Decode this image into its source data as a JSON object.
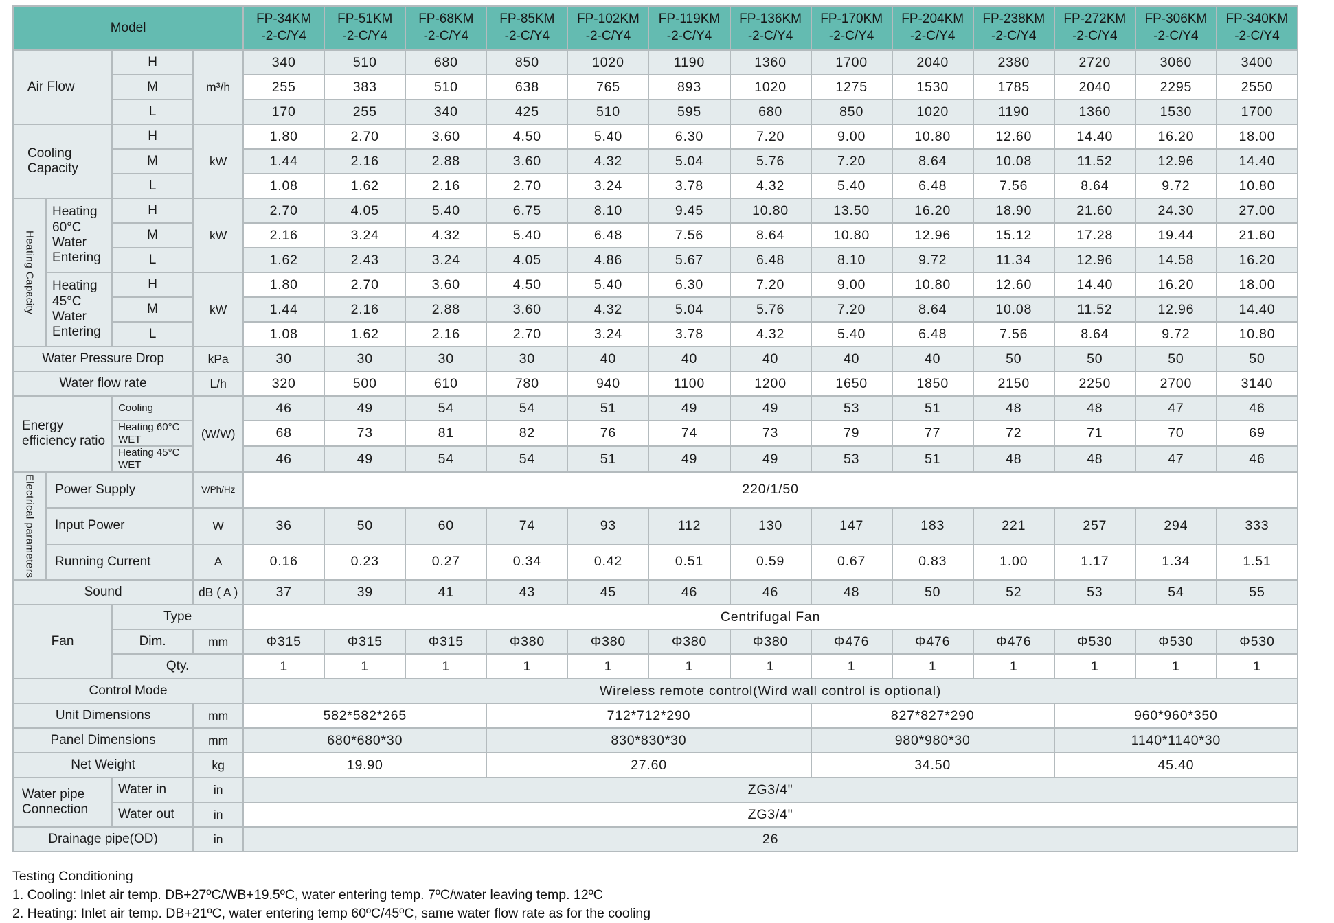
{
  "notes": {
    "lines": [
      "Testing Conditioning",
      "1. Cooling: Inlet air temp. DB+27ºC/WB+19.5ºC, water entering temp. 7ºC/water leaving temp. 12ºC",
      "2. Heating: Inlet air temp. DB+21ºC, water entering temp 60ºC/45ºC, same water flow rate as for the cooling"
    ]
  },
  "colors": {
    "header_teal": "#64bbb1",
    "row_light": "#e4ebed",
    "row_white": "#ffffff",
    "grid": "#b4bbbe"
  },
  "table": {
    "rows": [
      {
        "bg": "hd-row",
        "cells": [
          {
            "t": "Model",
            "cs": 4,
            "c": "hd",
            "n": "model-header"
          },
          {
            "t": "FP-34KM\n-2-C/Y4",
            "c": "hd",
            "n": "model-col-header"
          },
          {
            "t": "FP-51KM\n-2-C/Y4",
            "c": "hd",
            "n": "model-col-header"
          },
          {
            "t": "FP-68KM\n-2-C/Y4",
            "c": "hd",
            "n": "model-col-header"
          },
          {
            "t": "FP-85KM\n-2-C/Y4",
            "c": "hd",
            "n": "model-col-header"
          },
          {
            "t": "FP-102KM\n-2-C/Y4",
            "c": "hd",
            "n": "model-col-header"
          },
          {
            "t": "FP-119KM\n-2-C/Y4",
            "c": "hd",
            "n": "model-col-header"
          },
          {
            "t": "FP-136KM\n-2-C/Y4",
            "c": "hd",
            "n": "model-col-header"
          },
          {
            "t": "FP-170KM\n-2-C/Y4",
            "c": "hd",
            "n": "model-col-header"
          },
          {
            "t": "FP-204KM\n-2-C/Y4",
            "c": "hd",
            "n": "model-col-header"
          },
          {
            "t": "FP-238KM\n-2-C/Y4",
            "c": "hd",
            "n": "model-col-header"
          },
          {
            "t": "FP-272KM\n-2-C/Y4",
            "c": "hd",
            "n": "model-col-header"
          },
          {
            "t": "FP-306KM\n-2-C/Y4",
            "c": "hd",
            "n": "model-col-header"
          },
          {
            "t": "FP-340KM\n-2-C/Y4",
            "c": "hd",
            "n": "model-col-header"
          }
        ]
      },
      {
        "bg": "lt",
        "cells": [
          {
            "t": "Air Flow",
            "cs": 2,
            "rs": 3,
            "c": "lableft",
            "n": "air-flow-label"
          },
          {
            "t": "H",
            "c": "lab",
            "n": "speed-high-label"
          },
          {
            "t": "m³/h",
            "rs": 3,
            "c": "unit",
            "n": "air-flow-unit"
          }
        ],
        "values": [
          "340",
          "510",
          "680",
          "850",
          "1020",
          "1190",
          "1360",
          "1700",
          "2040",
          "2380",
          "2720",
          "3060",
          "3400"
        ]
      },
      {
        "bg": "wh",
        "cells": [
          {
            "t": "M",
            "c": "lab",
            "n": "speed-med-label"
          }
        ],
        "values": [
          "255",
          "383",
          "510",
          "638",
          "765",
          "893",
          "1020",
          "1275",
          "1530",
          "1785",
          "2040",
          "2295",
          "2550"
        ]
      },
      {
        "bg": "lt",
        "cells": [
          {
            "t": "L",
            "c": "lab",
            "n": "speed-low-label"
          }
        ],
        "values": [
          "170",
          "255",
          "340",
          "425",
          "510",
          "595",
          "680",
          "850",
          "1020",
          "1190",
          "1360",
          "1530",
          "1700"
        ]
      },
      {
        "bg": "wh",
        "cells": [
          {
            "t": "Cooling Capacity",
            "cs": 2,
            "rs": 3,
            "c": "lableft",
            "n": "cooling-capacity-label"
          },
          {
            "t": "H",
            "c": "lab",
            "n": "speed-high-label"
          },
          {
            "t": "kW",
            "rs": 3,
            "c": "unit",
            "n": "cooling-unit"
          }
        ],
        "values": [
          "1.80",
          "2.70",
          "3.60",
          "4.50",
          "5.40",
          "6.30",
          "7.20",
          "9.00",
          "10.80",
          "12.60",
          "14.40",
          "16.20",
          "18.00"
        ]
      },
      {
        "bg": "lt",
        "cells": [
          {
            "t": "M",
            "c": "lab",
            "n": "speed-med-label"
          }
        ],
        "values": [
          "1.44",
          "2.16",
          "2.88",
          "3.60",
          "4.32",
          "5.04",
          "5.76",
          "7.20",
          "8.64",
          "10.08",
          "11.52",
          "12.96",
          "14.40"
        ]
      },
      {
        "bg": "wh",
        "cells": [
          {
            "t": "L",
            "c": "lab",
            "n": "speed-low-label"
          }
        ],
        "values": [
          "1.08",
          "1.62",
          "2.16",
          "2.70",
          "3.24",
          "3.78",
          "4.32",
          "5.40",
          "6.48",
          "7.56",
          "8.64",
          "9.72",
          "10.80"
        ]
      },
      {
        "bg": "lt",
        "cells": [
          {
            "t": "Heating Capacity",
            "rs": 6,
            "c": "vert",
            "n": "heating-capacity-vertical-label"
          },
          {
            "t": "Heating 60°C Water Entering",
            "rs": 3,
            "c": "lableft p8",
            "n": "heating-60-label"
          },
          {
            "t": "H",
            "c": "lab",
            "n": "speed-high-label"
          },
          {
            "t": "kW",
            "rs": 3,
            "c": "unit",
            "n": "heating-60-unit"
          }
        ],
        "values": [
          "2.70",
          "4.05",
          "5.40",
          "6.75",
          "8.10",
          "9.45",
          "10.80",
          "13.50",
          "16.20",
          "18.90",
          "21.60",
          "24.30",
          "27.00"
        ]
      },
      {
        "bg": "wh",
        "cells": [
          {
            "t": "M",
            "c": "lab",
            "n": "speed-med-label"
          }
        ],
        "values": [
          "2.16",
          "3.24",
          "4.32",
          "5.40",
          "6.48",
          "7.56",
          "8.64",
          "10.80",
          "12.96",
          "15.12",
          "17.28",
          "19.44",
          "21.60"
        ]
      },
      {
        "bg": "lt",
        "cells": [
          {
            "t": "L",
            "c": "lab",
            "n": "speed-low-label"
          }
        ],
        "values": [
          "1.62",
          "2.43",
          "3.24",
          "4.05",
          "4.86",
          "5.67",
          "6.48",
          "8.10",
          "9.72",
          "11.34",
          "12.96",
          "14.58",
          "16.20"
        ]
      },
      {
        "bg": "wh",
        "cells": [
          {
            "t": "Heating 45°C Water Entering",
            "rs": 3,
            "c": "lableft p8",
            "n": "heating-45-label"
          },
          {
            "t": "H",
            "c": "lab",
            "n": "speed-high-label"
          },
          {
            "t": "kW",
            "rs": 3,
            "c": "unit",
            "n": "heating-45-unit"
          }
        ],
        "values": [
          "1.80",
          "2.70",
          "3.60",
          "4.50",
          "5.40",
          "6.30",
          "7.20",
          "9.00",
          "10.80",
          "12.60",
          "14.40",
          "16.20",
          "18.00"
        ]
      },
      {
        "bg": "lt",
        "cells": [
          {
            "t": "M",
            "c": "lab",
            "n": "speed-med-label"
          }
        ],
        "values": [
          "1.44",
          "2.16",
          "2.88",
          "3.60",
          "4.32",
          "5.04",
          "5.76",
          "7.20",
          "8.64",
          "10.08",
          "11.52",
          "12.96",
          "14.40"
        ]
      },
      {
        "bg": "wh",
        "cells": [
          {
            "t": "L",
            "c": "lab",
            "n": "speed-low-label"
          }
        ],
        "values": [
          "1.08",
          "1.62",
          "2.16",
          "2.70",
          "3.24",
          "3.78",
          "4.32",
          "5.40",
          "6.48",
          "7.56",
          "8.64",
          "9.72",
          "10.80"
        ]
      },
      {
        "bg": "lt",
        "cells": [
          {
            "t": "Water Pressure Drop",
            "cs": 3,
            "c": "lab",
            "n": "water-pressure-drop-label"
          },
          {
            "t": "kPa",
            "c": "unit",
            "n": "water-pressure-drop-unit"
          }
        ],
        "values": [
          "30",
          "30",
          "30",
          "30",
          "40",
          "40",
          "40",
          "40",
          "40",
          "50",
          "50",
          "50",
          "50"
        ]
      },
      {
        "bg": "wh",
        "cells": [
          {
            "t": "Water flow rate",
            "cs": 3,
            "c": "lab",
            "n": "water-flow-rate-label"
          },
          {
            "t": "L/h",
            "c": "unit",
            "n": "water-flow-rate-unit"
          }
        ],
        "values": [
          "320",
          "500",
          "610",
          "780",
          "940",
          "1100",
          "1200",
          "1650",
          "1850",
          "2150",
          "2250",
          "2700",
          "3140"
        ]
      },
      {
        "bg": "lt",
        "cells": [
          {
            "t": "Energy efficiency ratio",
            "cs": 2,
            "rs": 3,
            "c": "lableft p12",
            "n": "eer-label"
          },
          {
            "t": "Cooling",
            "c": "lableft p8 small",
            "n": "eer-cooling-label"
          },
          {
            "t": "(W/W)",
            "rs": 3,
            "c": "unit",
            "n": "eer-unit"
          }
        ],
        "values": [
          "46",
          "49",
          "54",
          "54",
          "51",
          "49",
          "49",
          "53",
          "51",
          "48",
          "48",
          "47",
          "46"
        ]
      },
      {
        "bg": "wh",
        "cells": [
          {
            "t": "Heating 60°C WET",
            "c": "lableft p8 small",
            "n": "eer-heating60-label"
          }
        ],
        "values": [
          "68",
          "73",
          "81",
          "82",
          "76",
          "74",
          "73",
          "79",
          "77",
          "72",
          "71",
          "70",
          "69"
        ]
      },
      {
        "bg": "lt",
        "cells": [
          {
            "t": "Heating 45°C WET",
            "c": "lableft p8 small",
            "n": "eer-heating45-label"
          }
        ],
        "values": [
          "46",
          "49",
          "54",
          "54",
          "51",
          "49",
          "49",
          "53",
          "51",
          "48",
          "48",
          "47",
          "46"
        ]
      },
      {
        "bg": "wh",
        "cells": [
          {
            "t": "Electrical parameters",
            "rs": 3,
            "c": "vert",
            "n": "electrical-parameters-vertical-label"
          },
          {
            "t": "Power Supply",
            "cs": 2,
            "c": "lableft p12",
            "n": "power-supply-label"
          },
          {
            "t": "V/Ph/Hz",
            "c": "unitsm",
            "n": "power-supply-unit"
          }
        ],
        "values": [
          {
            "t": "220/1/50",
            "cs": 13
          }
        ]
      },
      {
        "bg": "lt",
        "cells": [
          {
            "t": "Input Power",
            "cs": 2,
            "c": "lableft p12",
            "n": "input-power-label"
          },
          {
            "t": "W",
            "c": "unit",
            "n": "input-power-unit"
          }
        ],
        "values": [
          "36",
          "50",
          "60",
          "74",
          "93",
          "112",
          "130",
          "147",
          "183",
          "221",
          "257",
          "294",
          "333"
        ]
      },
      {
        "bg": "wh",
        "cells": [
          {
            "t": "Running Current",
            "cs": 2,
            "c": "lableft p12",
            "n": "running-current-label"
          },
          {
            "t": "A",
            "c": "unit",
            "n": "running-current-unit"
          }
        ],
        "values": [
          "0.16",
          "0.23",
          "0.27",
          "0.34",
          "0.42",
          "0.51",
          "0.59",
          "0.67",
          "0.83",
          "1.00",
          "1.17",
          "1.34",
          "1.51"
        ]
      },
      {
        "bg": "lt",
        "cells": [
          {
            "t": "Sound",
            "cs": 3,
            "c": "lab",
            "n": "sound-label"
          },
          {
            "t": "dB ( A )",
            "c": "unit",
            "n": "sound-unit"
          }
        ],
        "values": [
          "37",
          "39",
          "41",
          "43",
          "45",
          "46",
          "46",
          "48",
          "50",
          "52",
          "53",
          "54",
          "55"
        ]
      },
      {
        "bg": "wh",
        "cells": [
          {
            "t": "Fan",
            "cs": 2,
            "rs": 3,
            "c": "lab",
            "n": "fan-label"
          },
          {
            "t": "Type",
            "cs": 2,
            "c": "lab",
            "n": "fan-type-label"
          }
        ],
        "values": [
          {
            "t": "Centrifugal Fan",
            "cs": 13
          }
        ]
      },
      {
        "bg": "lt",
        "cells": [
          {
            "t": "Dim.",
            "c": "lab",
            "n": "fan-dim-label"
          },
          {
            "t": "mm",
            "c": "unit",
            "n": "fan-dim-unit"
          }
        ],
        "values": [
          "Φ315",
          "Φ315",
          "Φ315",
          "Φ380",
          "Φ380",
          "Φ380",
          "Φ380",
          "Φ476",
          "Φ476",
          "Φ476",
          "Φ530",
          "Φ530",
          "Φ530"
        ]
      },
      {
        "bg": "wh",
        "cells": [
          {
            "t": "Qty.",
            "cs": 2,
            "c": "lab",
            "n": "fan-qty-label"
          }
        ],
        "values": [
          "1",
          "1",
          "1",
          "1",
          "1",
          "1",
          "1",
          "1",
          "1",
          "1",
          "1",
          "1",
          "1"
        ]
      },
      {
        "bg": "lt",
        "cells": [
          {
            "t": "Control Mode",
            "cs": 4,
            "c": "lab",
            "n": "control-mode-label"
          }
        ],
        "values": [
          {
            "t": "Wireless remote control(Wird wall control is optional)",
            "cs": 13
          }
        ]
      },
      {
        "bg": "wh",
        "cells": [
          {
            "t": "Unit Dimensions",
            "cs": 3,
            "c": "lab",
            "n": "unit-dimensions-label"
          },
          {
            "t": "mm",
            "c": "unit",
            "n": "unit-dimensions-unit"
          }
        ],
        "values": [
          {
            "t": "582*582*265",
            "cs": 3
          },
          {
            "t": "712*712*290",
            "cs": 4
          },
          {
            "t": "827*827*290",
            "cs": 3
          },
          {
            "t": "960*960*350",
            "cs": 3
          }
        ]
      },
      {
        "bg": "lt",
        "cells": [
          {
            "t": "Panel Dimensions",
            "cs": 3,
            "c": "lab",
            "n": "panel-dimensions-label"
          },
          {
            "t": "mm",
            "c": "unit",
            "n": "panel-dimensions-unit"
          }
        ],
        "values": [
          {
            "t": "680*680*30",
            "cs": 3
          },
          {
            "t": "830*830*30",
            "cs": 4
          },
          {
            "t": "980*980*30",
            "cs": 3
          },
          {
            "t": "1140*1140*30",
            "cs": 3
          }
        ]
      },
      {
        "bg": "wh",
        "cells": [
          {
            "t": "Net Weight",
            "cs": 3,
            "c": "lab",
            "n": "net-weight-label"
          },
          {
            "t": "kg",
            "c": "unit",
            "n": "net-weight-unit"
          }
        ],
        "values": [
          {
            "t": "19.90",
            "cs": 3
          },
          {
            "t": "27.60",
            "cs": 4
          },
          {
            "t": "34.50",
            "cs": 3
          },
          {
            "t": "45.40",
            "cs": 3
          }
        ]
      },
      {
        "bg": "lt",
        "cells": [
          {
            "t": "Water pipe Connection",
            "cs": 2,
            "rs": 2,
            "c": "lableft p12",
            "n": "water-pipe-connection-label"
          },
          {
            "t": "Water in",
            "c": "lableft p8",
            "n": "water-in-label"
          },
          {
            "t": "in",
            "c": "unit",
            "n": "water-in-unit"
          }
        ],
        "values": [
          {
            "t": "ZG3/4\"",
            "cs": 13
          }
        ]
      },
      {
        "bg": "wh",
        "cells": [
          {
            "t": "Water out",
            "c": "lableft p8",
            "n": "water-out-label"
          },
          {
            "t": "in",
            "c": "unit",
            "n": "water-out-unit"
          }
        ],
        "values": [
          {
            "t": "ZG3/4\"",
            "cs": 13
          }
        ]
      },
      {
        "bg": "lt",
        "cells": [
          {
            "t": "Drainage pipe(OD)",
            "cs": 3,
            "c": "lab",
            "n": "drainage-pipe-label"
          },
          {
            "t": "in",
            "c": "unit",
            "n": "drainage-pipe-unit"
          }
        ],
        "values": [
          {
            "t": "26",
            "cs": 13
          }
        ]
      }
    ]
  }
}
